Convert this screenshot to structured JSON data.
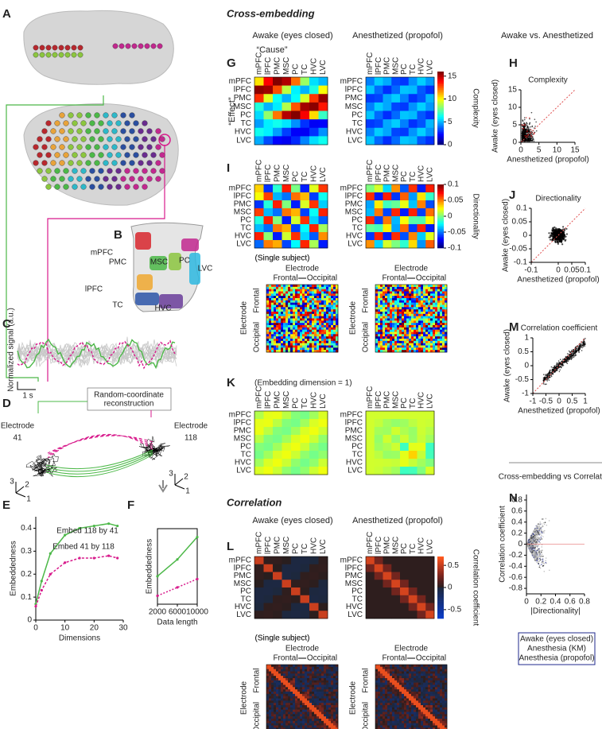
{
  "panel_labels": [
    "A",
    "B",
    "C",
    "D",
    "E",
    "F",
    "G",
    "H",
    "I",
    "J",
    "K",
    "L",
    "M",
    "N"
  ],
  "sections": [
    "Cross-embedding",
    "Correlation"
  ],
  "headers": {
    "awake": "Awake (eyes closed)",
    "anesthetized": "Anesthetized (propofol)",
    "comparison": "Awake vs. Anesthetized"
  },
  "regions": [
    "mPFC",
    "lPFC",
    "PMC",
    "MSC",
    "PC",
    "TC",
    "HVC",
    "LVC"
  ],
  "cause": "“Cause”",
  "effect": "“Effect”",
  "colorbars": [
    {
      "label": "Complexity",
      "ticks": [
        15,
        10,
        5,
        0
      ]
    },
    {
      "label": "Directionality",
      "ticks": [
        0.1,
        0.05,
        0,
        -0.05,
        -0.1
      ]
    },
    {
      "label": "Correlation coefficient",
      "ticks": [
        0.5,
        0,
        -0.5
      ]
    }
  ],
  "single_subject": "(Single subject)",
  "electrode": "Electrode",
  "frontal": "Frontal",
  "occipital": "Occipital",
  "embedding_dim": "(Embedding dimension = 1)",
  "signal": {
    "ylabel": "Normalized signal (a.u.)",
    "scale": "1 s"
  },
  "reconstruction": [
    "Random-coordinate",
    "reconstruction"
  ],
  "electrodes": [
    "41",
    "118"
  ],
  "axes3d": [
    "3",
    "2",
    "1"
  ],
  "embedding_plot": {
    "ylabel": "Embeddedness",
    "xlabel": "Dimensions",
    "xlim": [
      0,
      30
    ],
    "ylim": [
      0,
      0.45
    ],
    "xticks": [
      0,
      10,
      20,
      30
    ],
    "yticks": [
      0,
      0.1,
      0.2,
      0.3,
      0.4
    ],
    "series": [
      {
        "name": "Embed 118 by 41",
        "color": "#4cb848",
        "x": [
          0,
          2,
          5,
          10,
          15,
          20,
          25,
          28
        ],
        "values": [
          0.07,
          0.17,
          0.29,
          0.37,
          0.4,
          0.41,
          0.42,
          0.41
        ]
      },
      {
        "name": "Embed 41 by 118",
        "color": "#d81b8c",
        "x": [
          0,
          2,
          5,
          10,
          15,
          20,
          25,
          28
        ],
        "values": [
          0.06,
          0.13,
          0.2,
          0.25,
          0.27,
          0.27,
          0.28,
          0.27
        ]
      }
    ]
  },
  "length_plot": {
    "ylabel": "Embeddedness",
    "xlabel": "Data length",
    "xlim": [
      2000,
      10000
    ],
    "ylim": [
      0.2,
      0.47
    ],
    "xticks": [
      2000,
      6000,
      10000
    ],
    "series": [
      {
        "color": "#4cb848",
        "x": [
          2000,
          6000,
          10000
        ],
        "values": [
          0.3,
          0.36,
          0.44
        ]
      },
      {
        "color": "#d81b8c",
        "x": [
          2000,
          6000,
          10000
        ],
        "values": [
          0.23,
          0.26,
          0.29
        ]
      }
    ]
  },
  "scatters": [
    {
      "title": "Complexity",
      "ylabel": "Awake (eyes closed)",
      "xlabel": "Anesthetized (propofol)",
      "xlim": [
        0,
        15
      ],
      "ylim": [
        0,
        15
      ],
      "xticks": [
        0,
        5,
        10,
        15
      ],
      "yticks": [
        0,
        5,
        10,
        15
      ]
    },
    {
      "title": "Directionality",
      "ylabel": "Awake (eyes closed)",
      "xlabel": "Anesthetized (propofol)",
      "xlim": [
        -0.1,
        0.1
      ],
      "ylim": [
        -0.1,
        0.1
      ],
      "xticks": [
        -0.1,
        0,
        0.05,
        0.1
      ],
      "yticks": [
        -0.1,
        -0.05,
        0,
        0.05,
        0.1
      ]
    },
    {
      "title": "Correlation coefficient",
      "ylabel": "Awake (eyes closed)",
      "xlabel": "Anesthetized (propofol)",
      "xlim": [
        -1,
        1
      ],
      "ylim": [
        -1,
        1
      ],
      "xticks": [
        -1,
        -0.5,
        0,
        0.5,
        1
      ],
      "yticks": [
        -1,
        -0.5,
        0,
        0.5,
        1
      ]
    },
    {
      "title": "Cross-embedding vs Correlation",
      "ylabel": "Correlation coefficient",
      "xlabel": "|Directionality|",
      "xlim": [
        0,
        0.8
      ],
      "ylim": [
        -0.9,
        0.9
      ],
      "xticks": [
        0,
        0.2,
        0.4,
        0.6,
        0.8
      ],
      "yticks": [
        0.8,
        0.6,
        0.4,
        0.2,
        0,
        -0.2,
        -0.4,
        -0.6,
        -0.8
      ]
    }
  ],
  "legend": [
    {
      "name": "Awake (eyes closed)",
      "color": "#1f2a8c"
    },
    {
      "name": "Anesthesia (KM)",
      "color": "#000000"
    },
    {
      "name": "Anesthesia (propofol)",
      "color": "#999999"
    }
  ]
}
